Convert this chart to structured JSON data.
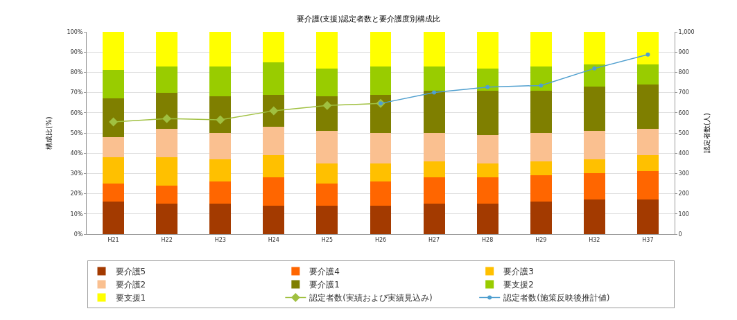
{
  "chart_data": {
    "type": "bar",
    "stacked": true,
    "title": "要介護(支援)認定者数と要介護度別構成比",
    "ylabel": "構成比(%)",
    "y2label": "認定者数(人)",
    "categories": [
      "H21",
      "H22",
      "H23",
      "H24",
      "H25",
      "H26",
      "H27",
      "H28",
      "H29",
      "H32",
      "H37"
    ],
    "series": [
      {
        "name": "要介護5",
        "color": "#a33a00",
        "values": [
          16,
          15,
          15,
          14,
          14,
          14,
          15,
          15,
          16,
          17,
          17
        ]
      },
      {
        "name": "要介護4",
        "color": "#ff6600",
        "values": [
          9,
          9,
          11,
          14,
          11,
          12,
          13,
          13,
          13,
          13,
          14
        ]
      },
      {
        "name": "要介護3",
        "color": "#ffc000",
        "values": [
          13,
          14,
          11,
          11,
          10,
          9,
          8,
          7,
          7,
          7,
          8
        ]
      },
      {
        "name": "要介護2",
        "color": "#fac090",
        "values": [
          10,
          14,
          13,
          14,
          16,
          15,
          14,
          14,
          14,
          14,
          13
        ]
      },
      {
        "name": "要介護1",
        "color": "#7f7f00",
        "values": [
          19,
          18,
          18,
          16,
          17,
          19,
          21,
          22,
          21,
          22,
          22
        ]
      },
      {
        "name": "要支援2",
        "color": "#99cc00",
        "values": [
          14,
          13,
          15,
          16,
          14,
          14,
          12,
          11,
          12,
          11,
          10
        ]
      },
      {
        "name": "要支援1",
        "color": "#ffff00",
        "values": [
          19,
          17,
          17,
          15,
          18,
          17,
          17,
          18,
          17,
          16,
          16
        ]
      },
      {
        "name": "認定者数(実績および実績見込み)",
        "type": "line",
        "axis": "y2",
        "color": "#a0c040",
        "marker": "diamond",
        "values": [
          555,
          571,
          565,
          610,
          636,
          646,
          null,
          null,
          null,
          null,
          null
        ]
      },
      {
        "name": "認定者数(施策反映後推計値)",
        "type": "line",
        "axis": "y2",
        "color": "#4f9fcf",
        "marker": "circle",
        "values": [
          null,
          null,
          null,
          null,
          null,
          646,
          700,
          727,
          735,
          819,
          888
        ]
      }
    ],
    "ylim": [
      0,
      100
    ],
    "yticks": [
      {
        "value": 0,
        "label": "0%"
      },
      {
        "value": 10,
        "label": "10%"
      },
      {
        "value": 20,
        "label": "20%"
      },
      {
        "value": 30,
        "label": "30%"
      },
      {
        "value": 40,
        "label": "40%"
      },
      {
        "value": 50,
        "label": "50%"
      },
      {
        "value": 60,
        "label": "60%"
      },
      {
        "value": 70,
        "label": "70%"
      },
      {
        "value": 80,
        "label": "80%"
      },
      {
        "value": 90,
        "label": "90%"
      },
      {
        "value": 100,
        "label": "100%"
      }
    ],
    "y2lim": [
      0,
      1000
    ],
    "y2ticks": [
      0,
      100,
      200,
      300,
      400,
      500,
      600,
      700,
      800,
      900,
      {
        "value": 1000,
        "label": "1,000"
      }
    ],
    "grid": "y",
    "legend": "bottom"
  }
}
